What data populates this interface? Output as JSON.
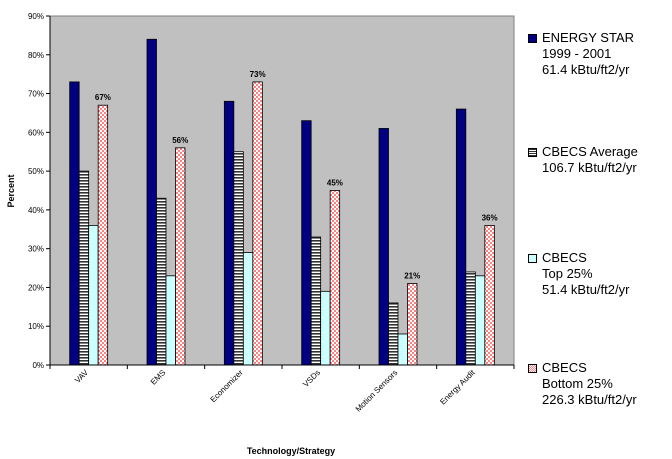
{
  "chart_data": {
    "type": "bar",
    "title": "",
    "xlabel": "Technology/Strategy",
    "ylabel": "Percent",
    "ylim": [
      0,
      90
    ],
    "yticks": [
      "0%",
      "10%",
      "20%",
      "30%",
      "40%",
      "50%",
      "60%",
      "70%",
      "80%",
      "90%"
    ],
    "categories": [
      "VAV",
      "EMS",
      "Economizer",
      "VSDs",
      "Motion Sensors",
      "Energy Audit"
    ],
    "grid": false,
    "legend_position": "right",
    "series": [
      {
        "name": "ENERGY STAR 1999 - 2001 61.4 kBtu/ft2/yr",
        "legend_lines": [
          "ENERGY STAR",
          "1999 - 2001",
          "61.4 kBtu/ft2/yr"
        ],
        "color": "#000080",
        "pattern": "solid",
        "values": [
          73,
          84,
          68,
          63,
          61,
          66
        ],
        "data_labels": [
          "",
          "",
          "",
          "",
          "",
          ""
        ]
      },
      {
        "name": "CBECS Average 106.7 kBtu/ft2/yr",
        "legend_lines": [
          "CBECS Average",
          "106.7 kBtu/ft2/yr"
        ],
        "color": "#555555",
        "pattern": "horizontal-stripes",
        "values": [
          50,
          43,
          55,
          33,
          16,
          24
        ],
        "data_labels": [
          "",
          "",
          "",
          "",
          "",
          ""
        ]
      },
      {
        "name": "CBECS Top 25% 51.4 kBtu/ft2/yr",
        "legend_lines": [
          "CBECS",
          "Top 25%",
          "51.4 kBtu/ft2/yr"
        ],
        "color": "#ccffff",
        "pattern": "solid",
        "values": [
          36,
          23,
          29,
          19,
          8,
          23
        ],
        "data_labels": [
          "",
          "",
          "",
          "",
          "",
          ""
        ]
      },
      {
        "name": "CBECS Bottom 25% 226.3 kBtu/ft2/yr",
        "legend_lines": [
          "CBECS",
          "Bottom 25%",
          "226.3 kBtu/ft2/yr"
        ],
        "color": "#ff9999",
        "pattern": "checker",
        "values": [
          67,
          56,
          73,
          45,
          21,
          36
        ],
        "data_labels": [
          "67%",
          "56%",
          "73%",
          "45%",
          "21%",
          "36%"
        ]
      }
    ],
    "plot_background": "#c0c0c0"
  }
}
